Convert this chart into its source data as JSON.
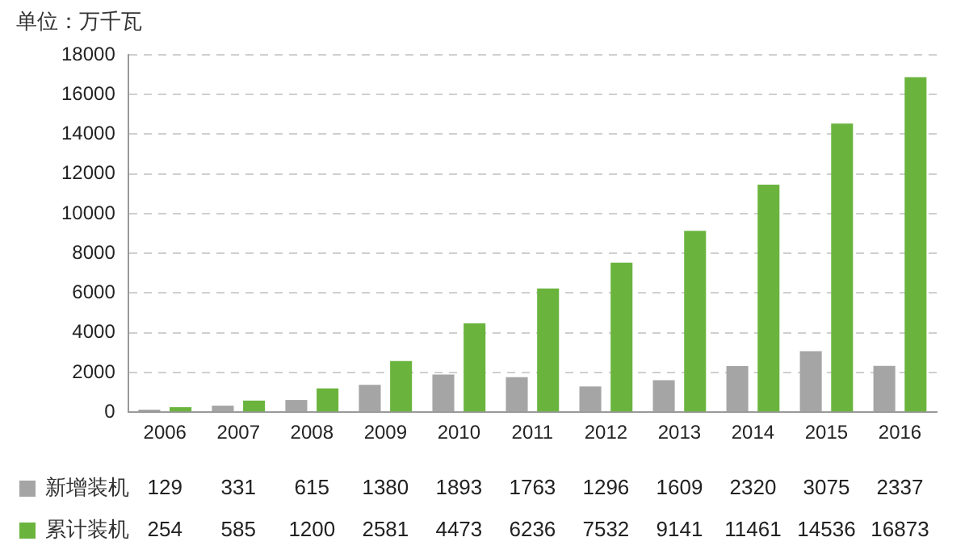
{
  "chart_data": {
    "type": "bar",
    "ylabel": "单位：万千瓦",
    "categories": [
      "2006",
      "2007",
      "2008",
      "2009",
      "2010",
      "2011",
      "2012",
      "2013",
      "2014",
      "2015",
      "2016"
    ],
    "series": [
      {
        "name": "新增装机",
        "color": "#a5a5a5",
        "values": [
          129,
          331,
          615,
          1380,
          1893,
          1763,
          1296,
          1609,
          2320,
          3075,
          2337
        ]
      },
      {
        "name": "累计装机",
        "color": "#6ab43e",
        "values": [
          254,
          585,
          1200,
          2581,
          4473,
          6236,
          7532,
          9141,
          11461,
          14536,
          16873
        ]
      }
    ],
    "ylim": [
      0,
      18000
    ],
    "yticks": [
      0,
      2000,
      4000,
      6000,
      8000,
      10000,
      12000,
      14000,
      16000,
      18000
    ],
    "grid": "y",
    "legend": "bottom",
    "data_labels": true
  }
}
